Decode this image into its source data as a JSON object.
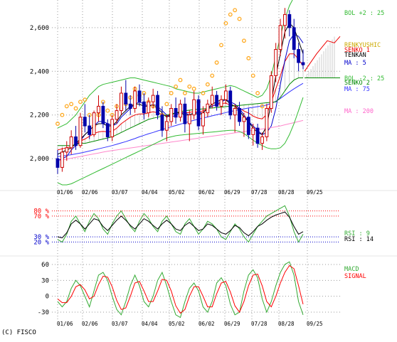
{
  "chart_data": [
    {
      "type": "line",
      "panel": "price",
      "x_ticks": [
        "01/06",
        "02/06",
        "03/07",
        "04/04",
        "05/02",
        "06/02",
        "06/29",
        "07/28",
        "08/28",
        "09/25"
      ],
      "y_ticks": [
        2000,
        2200,
        2400,
        2600
      ],
      "ylim": [
        1880,
        2720
      ],
      "grid": true,
      "candles": [
        {
          "o": 2000,
          "h": 2040,
          "l": 1930,
          "c": 1960
        },
        {
          "o": 1960,
          "h": 2050,
          "l": 1940,
          "c": 2030
        },
        {
          "o": 2030,
          "h": 2080,
          "l": 1990,
          "c": 2050
        },
        {
          "o": 2050,
          "h": 2130,
          "l": 2020,
          "c": 2100
        },
        {
          "o": 2100,
          "h": 2150,
          "l": 2040,
          "c": 2060
        },
        {
          "o": 2060,
          "h": 2210,
          "l": 2050,
          "c": 2190
        },
        {
          "o": 2190,
          "h": 2250,
          "l": 2120,
          "c": 2150
        },
        {
          "o": 2150,
          "h": 2200,
          "l": 2090,
          "c": 2110
        },
        {
          "o": 2110,
          "h": 2220,
          "l": 2100,
          "c": 2210
        },
        {
          "o": 2210,
          "h": 2290,
          "l": 2170,
          "c": 2240
        },
        {
          "o": 2240,
          "h": 2260,
          "l": 2140,
          "c": 2160
        },
        {
          "o": 2160,
          "h": 2180,
          "l": 2080,
          "c": 2100
        },
        {
          "o": 2100,
          "h": 2200,
          "l": 2080,
          "c": 2180
        },
        {
          "o": 2180,
          "h": 2250,
          "l": 2160,
          "c": 2220
        },
        {
          "o": 2220,
          "h": 2330,
          "l": 2200,
          "c": 2300
        },
        {
          "o": 2300,
          "h": 2360,
          "l": 2220,
          "c": 2250
        },
        {
          "o": 2250,
          "h": 2290,
          "l": 2200,
          "c": 2230
        },
        {
          "o": 2230,
          "h": 2330,
          "l": 2210,
          "c": 2310
        },
        {
          "o": 2310,
          "h": 2340,
          "l": 2240,
          "c": 2260
        },
        {
          "o": 2260,
          "h": 2300,
          "l": 2180,
          "c": 2210
        },
        {
          "o": 2210,
          "h": 2280,
          "l": 2190,
          "c": 2260
        },
        {
          "o": 2260,
          "h": 2320,
          "l": 2230,
          "c": 2290
        },
        {
          "o": 2290,
          "h": 2310,
          "l": 2180,
          "c": 2200
        },
        {
          "o": 2200,
          "h": 2240,
          "l": 2100,
          "c": 2130
        },
        {
          "o": 2130,
          "h": 2200,
          "l": 2080,
          "c": 2170
        },
        {
          "o": 2170,
          "h": 2250,
          "l": 2150,
          "c": 2230
        },
        {
          "o": 2230,
          "h": 2280,
          "l": 2160,
          "c": 2190
        },
        {
          "o": 2190,
          "h": 2270,
          "l": 2170,
          "c": 2250
        },
        {
          "o": 2250,
          "h": 2280,
          "l": 2120,
          "c": 2160
        },
        {
          "o": 2160,
          "h": 2220,
          "l": 2080,
          "c": 2200
        },
        {
          "o": 2200,
          "h": 2310,
          "l": 2180,
          "c": 2270
        },
        {
          "o": 2270,
          "h": 2290,
          "l": 2130,
          "c": 2150
        },
        {
          "o": 2150,
          "h": 2240,
          "l": 2110,
          "c": 2210
        },
        {
          "o": 2210,
          "h": 2270,
          "l": 2190,
          "c": 2250
        },
        {
          "o": 2250,
          "h": 2330,
          "l": 2230,
          "c": 2290
        },
        {
          "o": 2290,
          "h": 2310,
          "l": 2220,
          "c": 2240
        },
        {
          "o": 2240,
          "h": 2290,
          "l": 2200,
          "c": 2270
        },
        {
          "o": 2270,
          "h": 2340,
          "l": 2250,
          "c": 2310
        },
        {
          "o": 2310,
          "h": 2330,
          "l": 2180,
          "c": 2200
        },
        {
          "o": 2200,
          "h": 2250,
          "l": 2120,
          "c": 2230
        },
        {
          "o": 2230,
          "h": 2260,
          "l": 2150,
          "c": 2170
        },
        {
          "o": 2170,
          "h": 2210,
          "l": 2100,
          "c": 2190
        },
        {
          "o": 2190,
          "h": 2230,
          "l": 2090,
          "c": 2110
        },
        {
          "o": 2110,
          "h": 2160,
          "l": 2060,
          "c": 2140
        },
        {
          "o": 2140,
          "h": 2160,
          "l": 2050,
          "c": 2070
        },
        {
          "o": 2070,
          "h": 2120,
          "l": 2040,
          "c": 2100
        },
        {
          "o": 2100,
          "h": 2250,
          "l": 2080,
          "c": 2230
        },
        {
          "o": 2230,
          "h": 2400,
          "l": 2210,
          "c": 2380
        },
        {
          "o": 2380,
          "h": 2530,
          "l": 2350,
          "c": 2500
        },
        {
          "o": 2500,
          "h": 2640,
          "l": 2470,
          "c": 2610
        },
        {
          "o": 2610,
          "h": 2690,
          "l": 2550,
          "c": 2660
        },
        {
          "o": 2660,
          "h": 2680,
          "l": 2560,
          "c": 2600
        },
        {
          "o": 2600,
          "h": 2640,
          "l": 2460,
          "c": 2500
        },
        {
          "o": 2500,
          "h": 2530,
          "l": 2400,
          "c": 2440
        },
        {
          "o": 2440,
          "h": 2500,
          "l": 2410,
          "c": 2430
        }
      ],
      "series": [
        {
          "name": "MA : 5",
          "color": "#0000cc",
          "values": [
            1990,
            2000,
            2010,
            2040,
            2060,
            2080,
            2110,
            2130,
            2150,
            2170,
            2170,
            2160,
            2150,
            2160,
            2190,
            2210,
            2230,
            2250,
            2260,
            2250,
            2240,
            2250,
            2240,
            2220,
            2200,
            2190,
            2200,
            2210,
            2210,
            2200,
            2210,
            2210,
            2210,
            2230,
            2240,
            2250,
            2260,
            2270,
            2260,
            2250,
            2230,
            2200,
            2170,
            2150,
            2130,
            2110,
            2120,
            2150,
            2230,
            2340,
            2450,
            2540,
            2570,
            2560,
            2530
          ]
        },
        {
          "name": "MA : 75",
          "color": "#3333ff",
          "values": [
            2010,
            2012,
            2015,
            2018,
            2022,
            2026,
            2030,
            2035,
            2040,
            2045,
            2050,
            2055,
            2060,
            2066,
            2072,
            2078,
            2085,
            2092,
            2100,
            2107,
            2114,
            2120,
            2127,
            2133,
            2140,
            2146,
            2152,
            2158,
            2164,
            2170,
            2176,
            2181,
            2186,
            2191,
            2196,
            2201,
            2206,
            2211,
            2216,
            2220,
            2224,
            2228,
            2232,
            2235,
            2238,
            2241,
            2246,
            2253,
            2263,
            2276,
            2291,
            2306,
            2320,
            2333,
            2345
          ]
        },
        {
          "name": "MA : 200",
          "color": "#ff88cc",
          "values": [
            1990,
            1994,
            1998,
            2002,
            2006,
            2010,
            2014,
            2018,
            2022,
            2026,
            2030,
            2034,
            2037,
            2040,
            2043,
            2046,
            2049,
            2052,
            2055,
            2058,
            2061,
            2064,
            2067,
            2070,
            2073,
            2076,
            2079,
            2082,
            2085,
            2088,
            2091,
            2094,
            2097,
            2100,
            2103,
            2106,
            2109,
            2112,
            2115,
            2118,
            2121,
            2124,
            2127,
            2130,
            2133,
            2136,
            2139,
            2142,
            2146,
            2150,
            2155,
            2160,
            2165,
            2170,
            2175
          ]
        },
        {
          "name": "BOL +2 : 25",
          "color": "#33bb33",
          "values": [
            2140,
            2150,
            2160,
            2180,
            2200,
            2230,
            2260,
            2290,
            2310,
            2330,
            2340,
            2345,
            2350,
            2355,
            2360,
            2365,
            2370,
            2370,
            2365,
            2360,
            2355,
            2350,
            2345,
            2340,
            2335,
            2330,
            2320,
            2315,
            2310,
            2305,
            2300,
            2300,
            2305,
            2310,
            2315,
            2320,
            2325,
            2330,
            2335,
            2330,
            2320,
            2310,
            2300,
            2290,
            2280,
            2290,
            2320,
            2380,
            2470,
            2560,
            2640,
            2700,
            2740,
            2760,
            2760
          ]
        },
        {
          "name": "BOL -2 : 25",
          "color": "#33bb33",
          "values": [
            1890,
            1880,
            1880,
            1885,
            1895,
            1905,
            1915,
            1925,
            1935,
            1945,
            1955,
            1965,
            1975,
            1985,
            1995,
            2005,
            2015,
            2025,
            2035,
            2045,
            2055,
            2065,
            2075,
            2085,
            2095,
            2100,
            2105,
            2108,
            2110,
            2112,
            2114,
            2116,
            2118,
            2120,
            2122,
            2124,
            2126,
            2128,
            2130,
            2130,
            2125,
            2115,
            2100,
            2085,
            2070,
            2060,
            2050,
            2045,
            2045,
            2050,
            2070,
            2110,
            2160,
            2220,
            2280
          ]
        },
        {
          "name": "TENKAN",
          "color": "#000000",
          "values": [
            2020,
            2030,
            2040,
            2050,
            2070,
            2090,
            2110,
            2130,
            2150,
            2160,
            2160,
            2150,
            2150,
            2170,
            2200,
            2220,
            2240,
            2250,
            2250,
            2240,
            2240,
            2245,
            2230,
            2210,
            2190,
            2200,
            2210,
            2210,
            2200,
            2200,
            2210,
            2200,
            2210,
            2230,
            2250,
            2260,
            2270,
            2270,
            2250,
            2240,
            2220,
            2190,
            2170,
            2140,
            2120,
            2110,
            2150,
            2260,
            2380,
            2480,
            2580,
            2620,
            2600,
            2540,
            2480
          ]
        },
        {
          "name": "SENKO 2",
          "color": "#008800",
          "values": [
            2060,
            2060,
            2060,
            2060,
            2065,
            2070,
            2070,
            2075,
            2080,
            2085,
            2090,
            2095,
            2100,
            2110,
            2120,
            2130,
            2140,
            2150,
            2160,
            2170,
            2180,
            2185,
            2190,
            2195,
            2200,
            2205,
            2210,
            2215,
            2220,
            2222,
            2224,
            2226,
            2228,
            2230,
            2232,
            2234,
            2236,
            2238,
            2240,
            2242,
            2244,
            2246,
            2248,
            2250,
            2252,
            2254,
            2256,
            2258,
            2260,
            2280,
            2310,
            2340,
            2360,
            2370,
            2370
          ]
        },
        {
          "name": "CHIKOU",
          "color": "#000000",
          "values": [
            2160,
            2200,
            2240,
            2250,
            2230,
            2260,
            2270,
            2200,
            2150,
            2200,
            2260,
            2220,
            2200,
            2240,
            2230,
            2250,
            2280,
            2320,
            2290,
            2300,
            2260,
            2240,
            2230,
            2200,
            2250,
            2300,
            2330,
            2360,
            2300,
            2330,
            2320,
            2260,
            2300,
            2340,
            2380,
            2440,
            2520,
            2620,
            2660,
            2680,
            2640,
            2540,
            2460,
            2380,
            2300,
            2240
          ]
        }
      ],
      "legend": [
        "BOL +2 : 25",
        "BOL -2 : 25",
        "RENKYUSHIC",
        "SENKO 1",
        "TENKAN",
        "MA : 5",
        "SENKO 2",
        "MA : 75",
        "MA : 200"
      ]
    },
    {
      "type": "line",
      "panel": "rsi",
      "y_ticks": [
        "20 %",
        "30 %",
        "70 %",
        "80 %"
      ],
      "ylim": [
        0,
        100
      ],
      "series": [
        {
          "name": "RSI : 9",
          "color": "#33aa33",
          "values": [
            25,
            20,
            35,
            60,
            70,
            55,
            40,
            60,
            75,
            65,
            45,
            35,
            55,
            70,
            80,
            65,
            50,
            40,
            60,
            75,
            65,
            50,
            40,
            60,
            70,
            55,
            40,
            35,
            55,
            65,
            50,
            35,
            45,
            60,
            55,
            45,
            30,
            25,
            40,
            55,
            45,
            30,
            20,
            35,
            50,
            60,
            70,
            75,
            80,
            85,
            90,
            70,
            40,
            20,
            35
          ]
        },
        {
          "name": "RSI : 14",
          "color": "#000000",
          "values": [
            30,
            28,
            38,
            55,
            62,
            55,
            45,
            55,
            65,
            62,
            50,
            42,
            52,
            62,
            70,
            62,
            52,
            45,
            55,
            65,
            60,
            52,
            45,
            55,
            62,
            55,
            45,
            42,
            52,
            58,
            50,
            42,
            45,
            55,
            52,
            45,
            38,
            35,
            42,
            52,
            48,
            38,
            32,
            40,
            50,
            55,
            62,
            68,
            72,
            75,
            78,
            68,
            50,
            35,
            40
          ]
        }
      ]
    },
    {
      "type": "line",
      "panel": "macd",
      "y_ticks": [
        -30,
        0,
        30,
        60
      ],
      "ylim": [
        -42,
        72
      ],
      "series": [
        {
          "name": "MACD",
          "color": "#33aa33",
          "values": [
            -10,
            -20,
            -10,
            15,
            30,
            20,
            0,
            -20,
            10,
            40,
            45,
            30,
            0,
            -25,
            -35,
            -10,
            20,
            40,
            20,
            -10,
            -20,
            0,
            30,
            45,
            20,
            -10,
            -35,
            -40,
            -10,
            15,
            25,
            10,
            -20,
            -30,
            -10,
            25,
            35,
            20,
            -15,
            -35,
            -30,
            10,
            40,
            50,
            35,
            -5,
            -30,
            -10,
            20,
            45,
            60,
            65,
            40,
            -10,
            -35
          ]
        },
        {
          "name": "SIGNAL",
          "color": "#ff0000",
          "values": [
            -5,
            -12,
            -12,
            0,
            18,
            22,
            12,
            -5,
            0,
            22,
            38,
            36,
            18,
            -8,
            -25,
            -22,
            0,
            25,
            28,
            10,
            -10,
            -10,
            10,
            32,
            30,
            10,
            -18,
            -32,
            -25,
            0,
            18,
            18,
            0,
            -20,
            -20,
            5,
            25,
            28,
            8,
            -18,
            -30,
            -10,
            20,
            40,
            42,
            20,
            -10,
            -20,
            0,
            25,
            45,
            58,
            52,
            20,
            -15
          ]
        }
      ]
    }
  ],
  "copyright": "(C) FISCO",
  "colors": {
    "candle_up": "#cc0000",
    "candle_down": "#0000aa",
    "chikou_marker": "#ffaa22",
    "cloud": "#aaaaaa",
    "senko1": "#ee0000"
  }
}
